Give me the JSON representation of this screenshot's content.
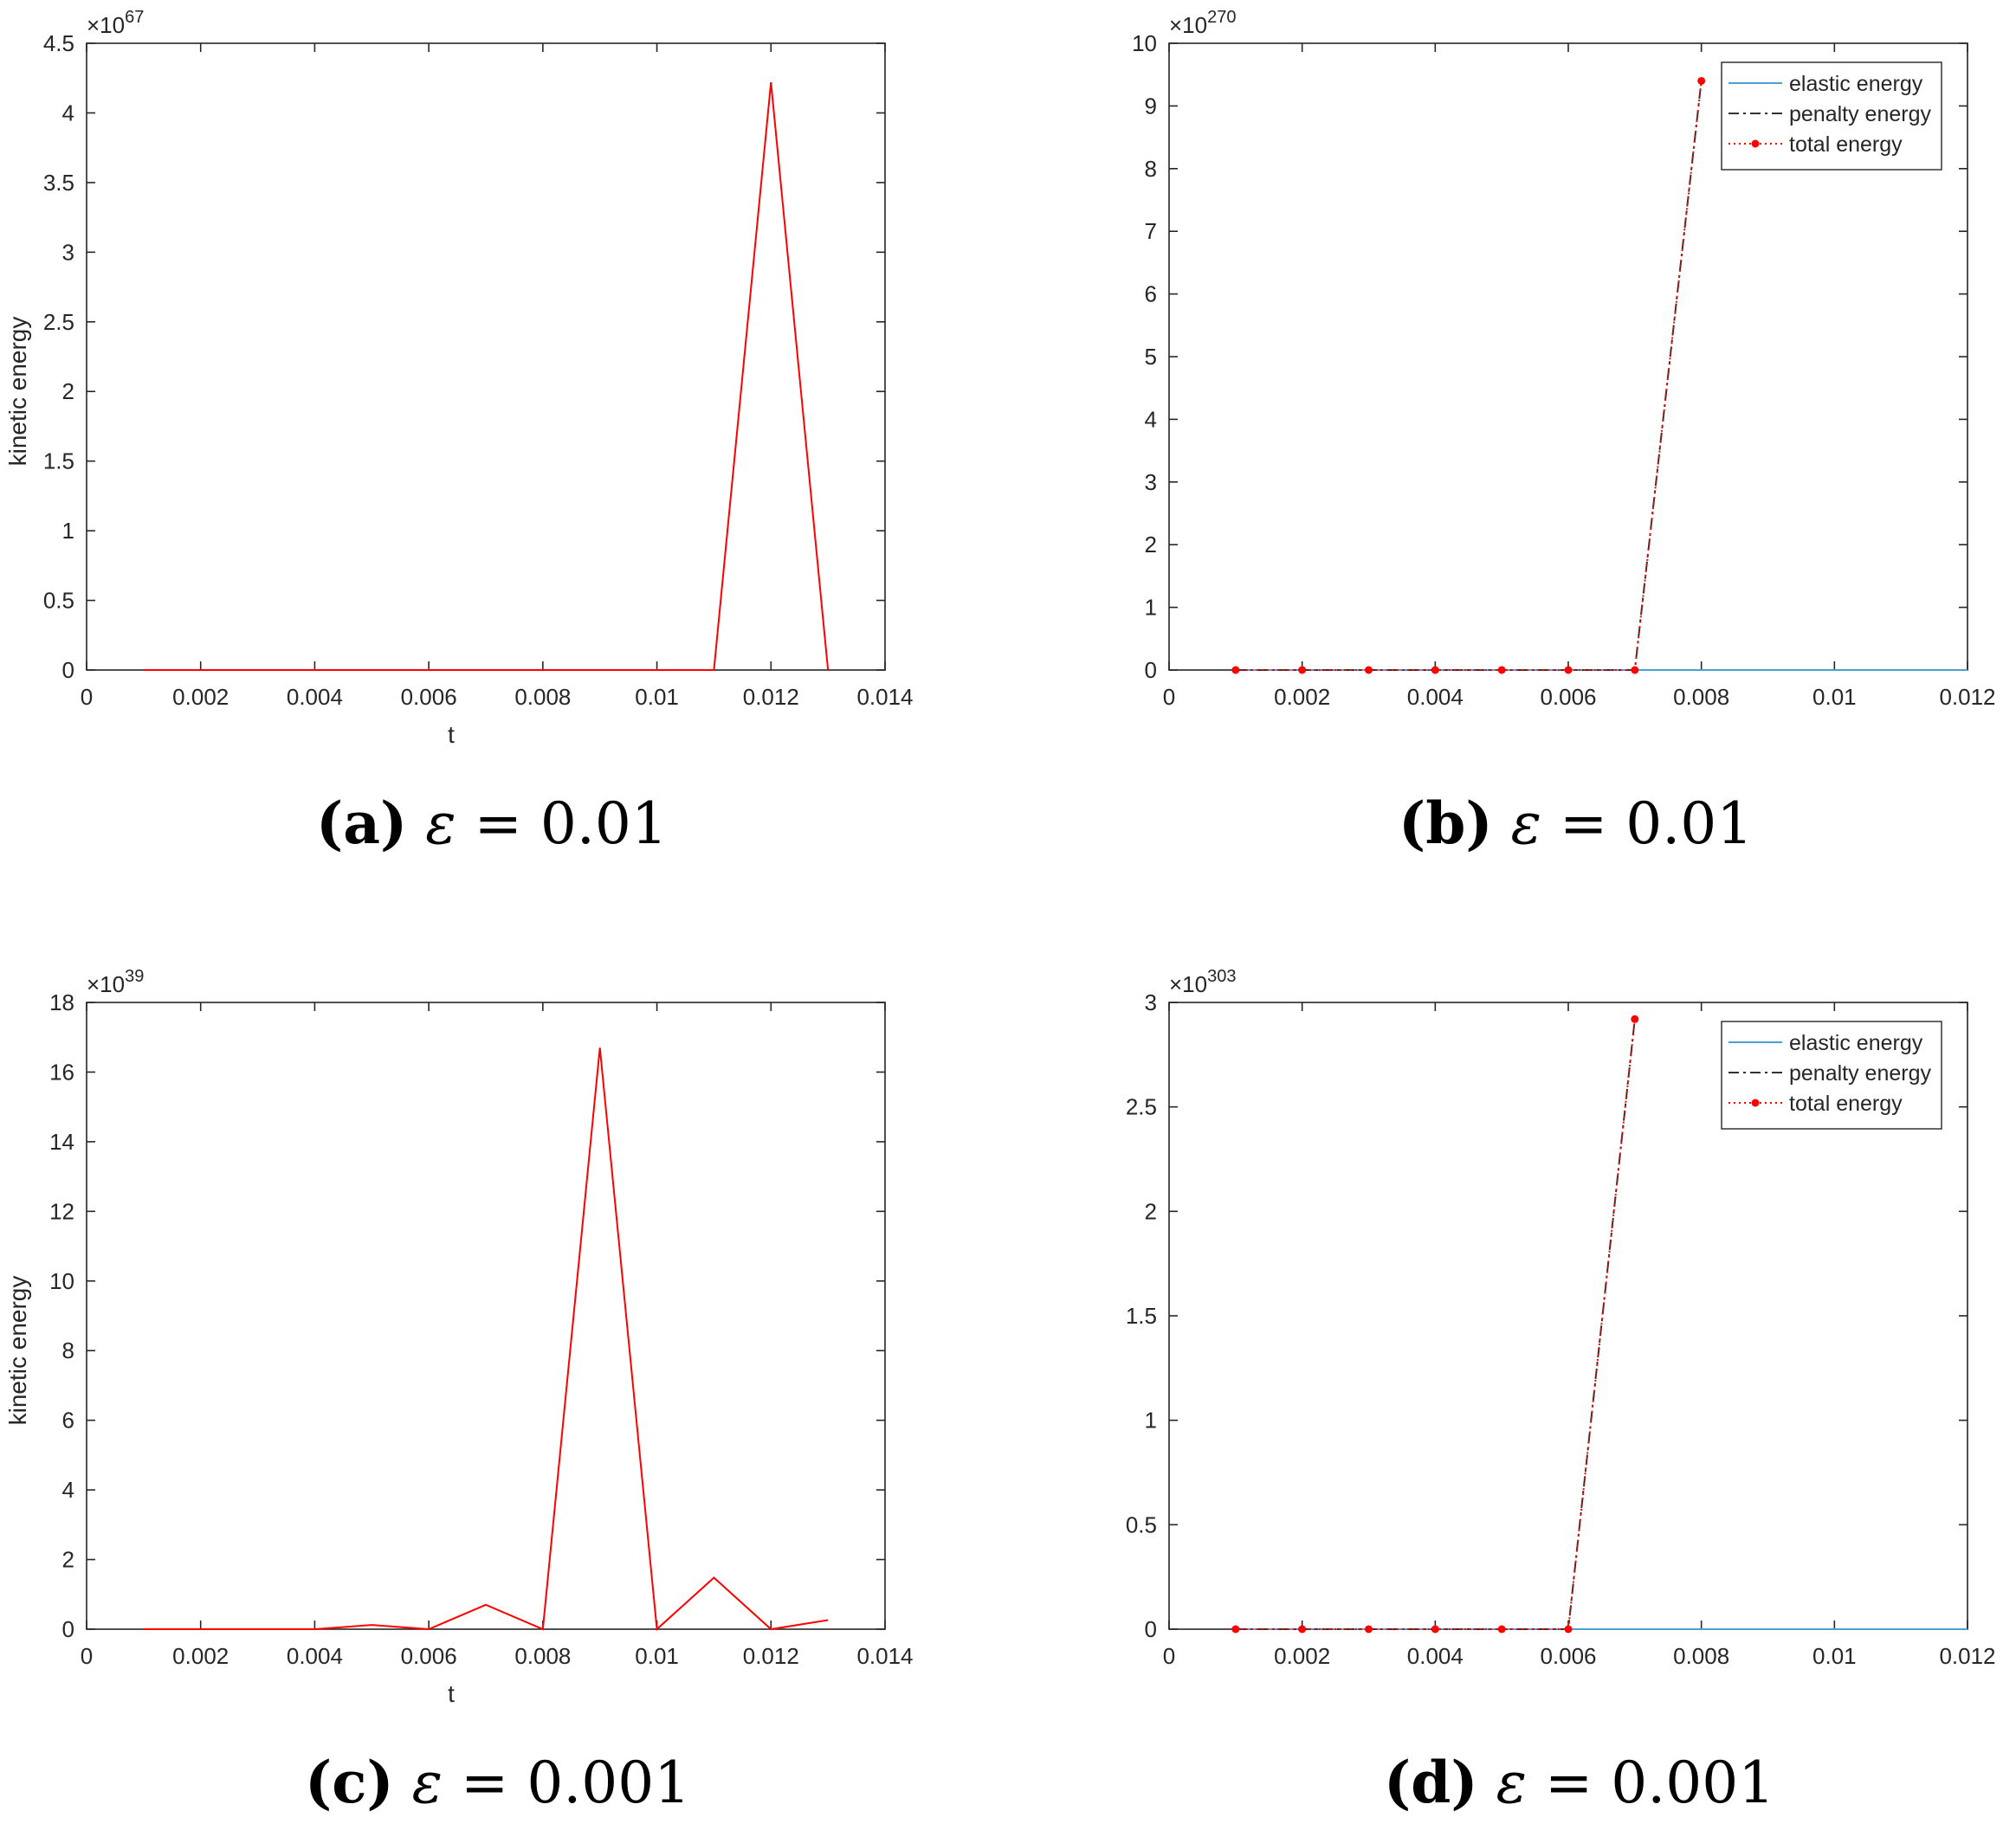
{
  "chart_data": [
    {
      "id": "a",
      "type": "line",
      "title": "",
      "xlabel": "t",
      "ylabel": "kinetic energy",
      "exponent": "67",
      "xlim": [
        0,
        0.014
      ],
      "ylim": [
        0,
        4.5
      ],
      "xticks": [
        "0",
        "0.002",
        "0.004",
        "0.006",
        "0.008",
        "0.01",
        "0.012",
        "0.014"
      ],
      "yticks": [
        "0",
        "0.5",
        "1",
        "1.5",
        "2",
        "2.5",
        "3",
        "3.5",
        "4",
        "4.5"
      ],
      "grid": false,
      "series": [
        {
          "color": "#ff0000",
          "x": [
            0.001,
            0.002,
            0.003,
            0.004,
            0.005,
            0.006,
            0.007,
            0.008,
            0.009,
            0.01,
            0.011,
            0.012,
            0.013
          ],
          "y": [
            0,
            0,
            0,
            0,
            0,
            0,
            0,
            0,
            0,
            0,
            0,
            4.22,
            0
          ]
        }
      ],
      "caption": {
        "label": "(a)",
        "eps": "ε",
        "rest": " = 0.01"
      }
    },
    {
      "id": "b",
      "type": "line",
      "title": "",
      "xlabel": "",
      "ylabel": "",
      "exponent": "270",
      "xlim": [
        0,
        0.012
      ],
      "ylim": [
        0,
        10
      ],
      "xticks": [
        "0",
        "0.002",
        "0.004",
        "0.006",
        "0.008",
        "0.01",
        "0.012"
      ],
      "yticks": [
        "0",
        "1",
        "2",
        "3",
        "4",
        "5",
        "6",
        "7",
        "8",
        "9",
        "10"
      ],
      "grid": false,
      "legend": {
        "position": "top-right"
      },
      "series": [
        {
          "name": "elastic energy",
          "style": "solid",
          "color": "#4aa0d8",
          "x": [
            0.001,
            0.002,
            0.003,
            0.004,
            0.005,
            0.006,
            0.007,
            0.008,
            0.009,
            0.01,
            0.011,
            0.012
          ],
          "y": [
            0,
            0,
            0,
            0,
            0,
            0,
            0,
            0,
            0,
            0,
            0,
            0
          ]
        },
        {
          "name": "penalty energy",
          "style": "dashdot",
          "color": "#333333",
          "x": [
            0.001,
            0.002,
            0.003,
            0.004,
            0.005,
            0.006,
            0.007,
            0.008
          ],
          "y": [
            0,
            0,
            0,
            0,
            0,
            0,
            0,
            9.4
          ]
        },
        {
          "name": "total energy",
          "style": "dotted-markers",
          "color": "#ff0000",
          "x": [
            0.001,
            0.002,
            0.003,
            0.004,
            0.005,
            0.006,
            0.007,
            0.008
          ],
          "y": [
            0,
            0,
            0,
            0,
            0,
            0,
            0,
            9.4
          ]
        }
      ],
      "caption": {
        "label": "(b)",
        "eps": "ε",
        "rest": " = 0.01"
      }
    },
    {
      "id": "c",
      "type": "line",
      "title": "",
      "xlabel": "t",
      "ylabel": "kinetic energy",
      "exponent": "39",
      "xlim": [
        0,
        0.014
      ],
      "ylim": [
        0,
        18
      ],
      "xticks": [
        "0",
        "0.002",
        "0.004",
        "0.006",
        "0.008",
        "0.01",
        "0.012",
        "0.014"
      ],
      "yticks": [
        "0",
        "2",
        "4",
        "6",
        "8",
        "10",
        "12",
        "14",
        "16",
        "18"
      ],
      "grid": false,
      "series": [
        {
          "color": "#ff0000",
          "x": [
            0.001,
            0.002,
            0.003,
            0.004,
            0.005,
            0.006,
            0.007,
            0.008,
            0.009,
            0.01,
            0.011,
            0.012,
            0.013
          ],
          "y": [
            0,
            0,
            0,
            0,
            0.12,
            0,
            0.7,
            0,
            16.7,
            0,
            1.48,
            0,
            0.26
          ]
        }
      ],
      "caption": {
        "label": "(c)",
        "eps": "ε",
        "rest": " = 0.001"
      }
    },
    {
      "id": "d",
      "type": "line",
      "title": "",
      "xlabel": "",
      "ylabel": "",
      "exponent": "303",
      "xlim": [
        0,
        0.012
      ],
      "ylim": [
        0,
        3
      ],
      "xticks": [
        "0",
        "0.002",
        "0.004",
        "0.006",
        "0.008",
        "0.01",
        "0.012"
      ],
      "yticks": [
        "0",
        "0.5",
        "1",
        "1.5",
        "2",
        "2.5",
        "3"
      ],
      "grid": false,
      "legend": {
        "position": "top-right"
      },
      "series": [
        {
          "name": "elastic energy",
          "style": "solid",
          "color": "#4aa0d8",
          "x": [
            0.001,
            0.002,
            0.003,
            0.004,
            0.005,
            0.006,
            0.007,
            0.008,
            0.009,
            0.01,
            0.011,
            0.012
          ],
          "y": [
            0,
            0,
            0,
            0,
            0,
            0,
            0,
            0,
            0,
            0,
            0,
            0
          ]
        },
        {
          "name": "penalty energy",
          "style": "dashdot",
          "color": "#333333",
          "x": [
            0.001,
            0.002,
            0.003,
            0.004,
            0.005,
            0.006,
            0.007
          ],
          "y": [
            0,
            0,
            0,
            0,
            0,
            0,
            2.92
          ]
        },
        {
          "name": "total energy",
          "style": "dotted-markers",
          "color": "#ff0000",
          "x": [
            0.001,
            0.002,
            0.003,
            0.004,
            0.005,
            0.006,
            0.007
          ],
          "y": [
            0,
            0,
            0,
            0,
            0,
            0,
            2.92
          ]
        }
      ],
      "caption": {
        "label": "(d)",
        "eps": "ε",
        "rest": " = 0.001"
      }
    }
  ]
}
